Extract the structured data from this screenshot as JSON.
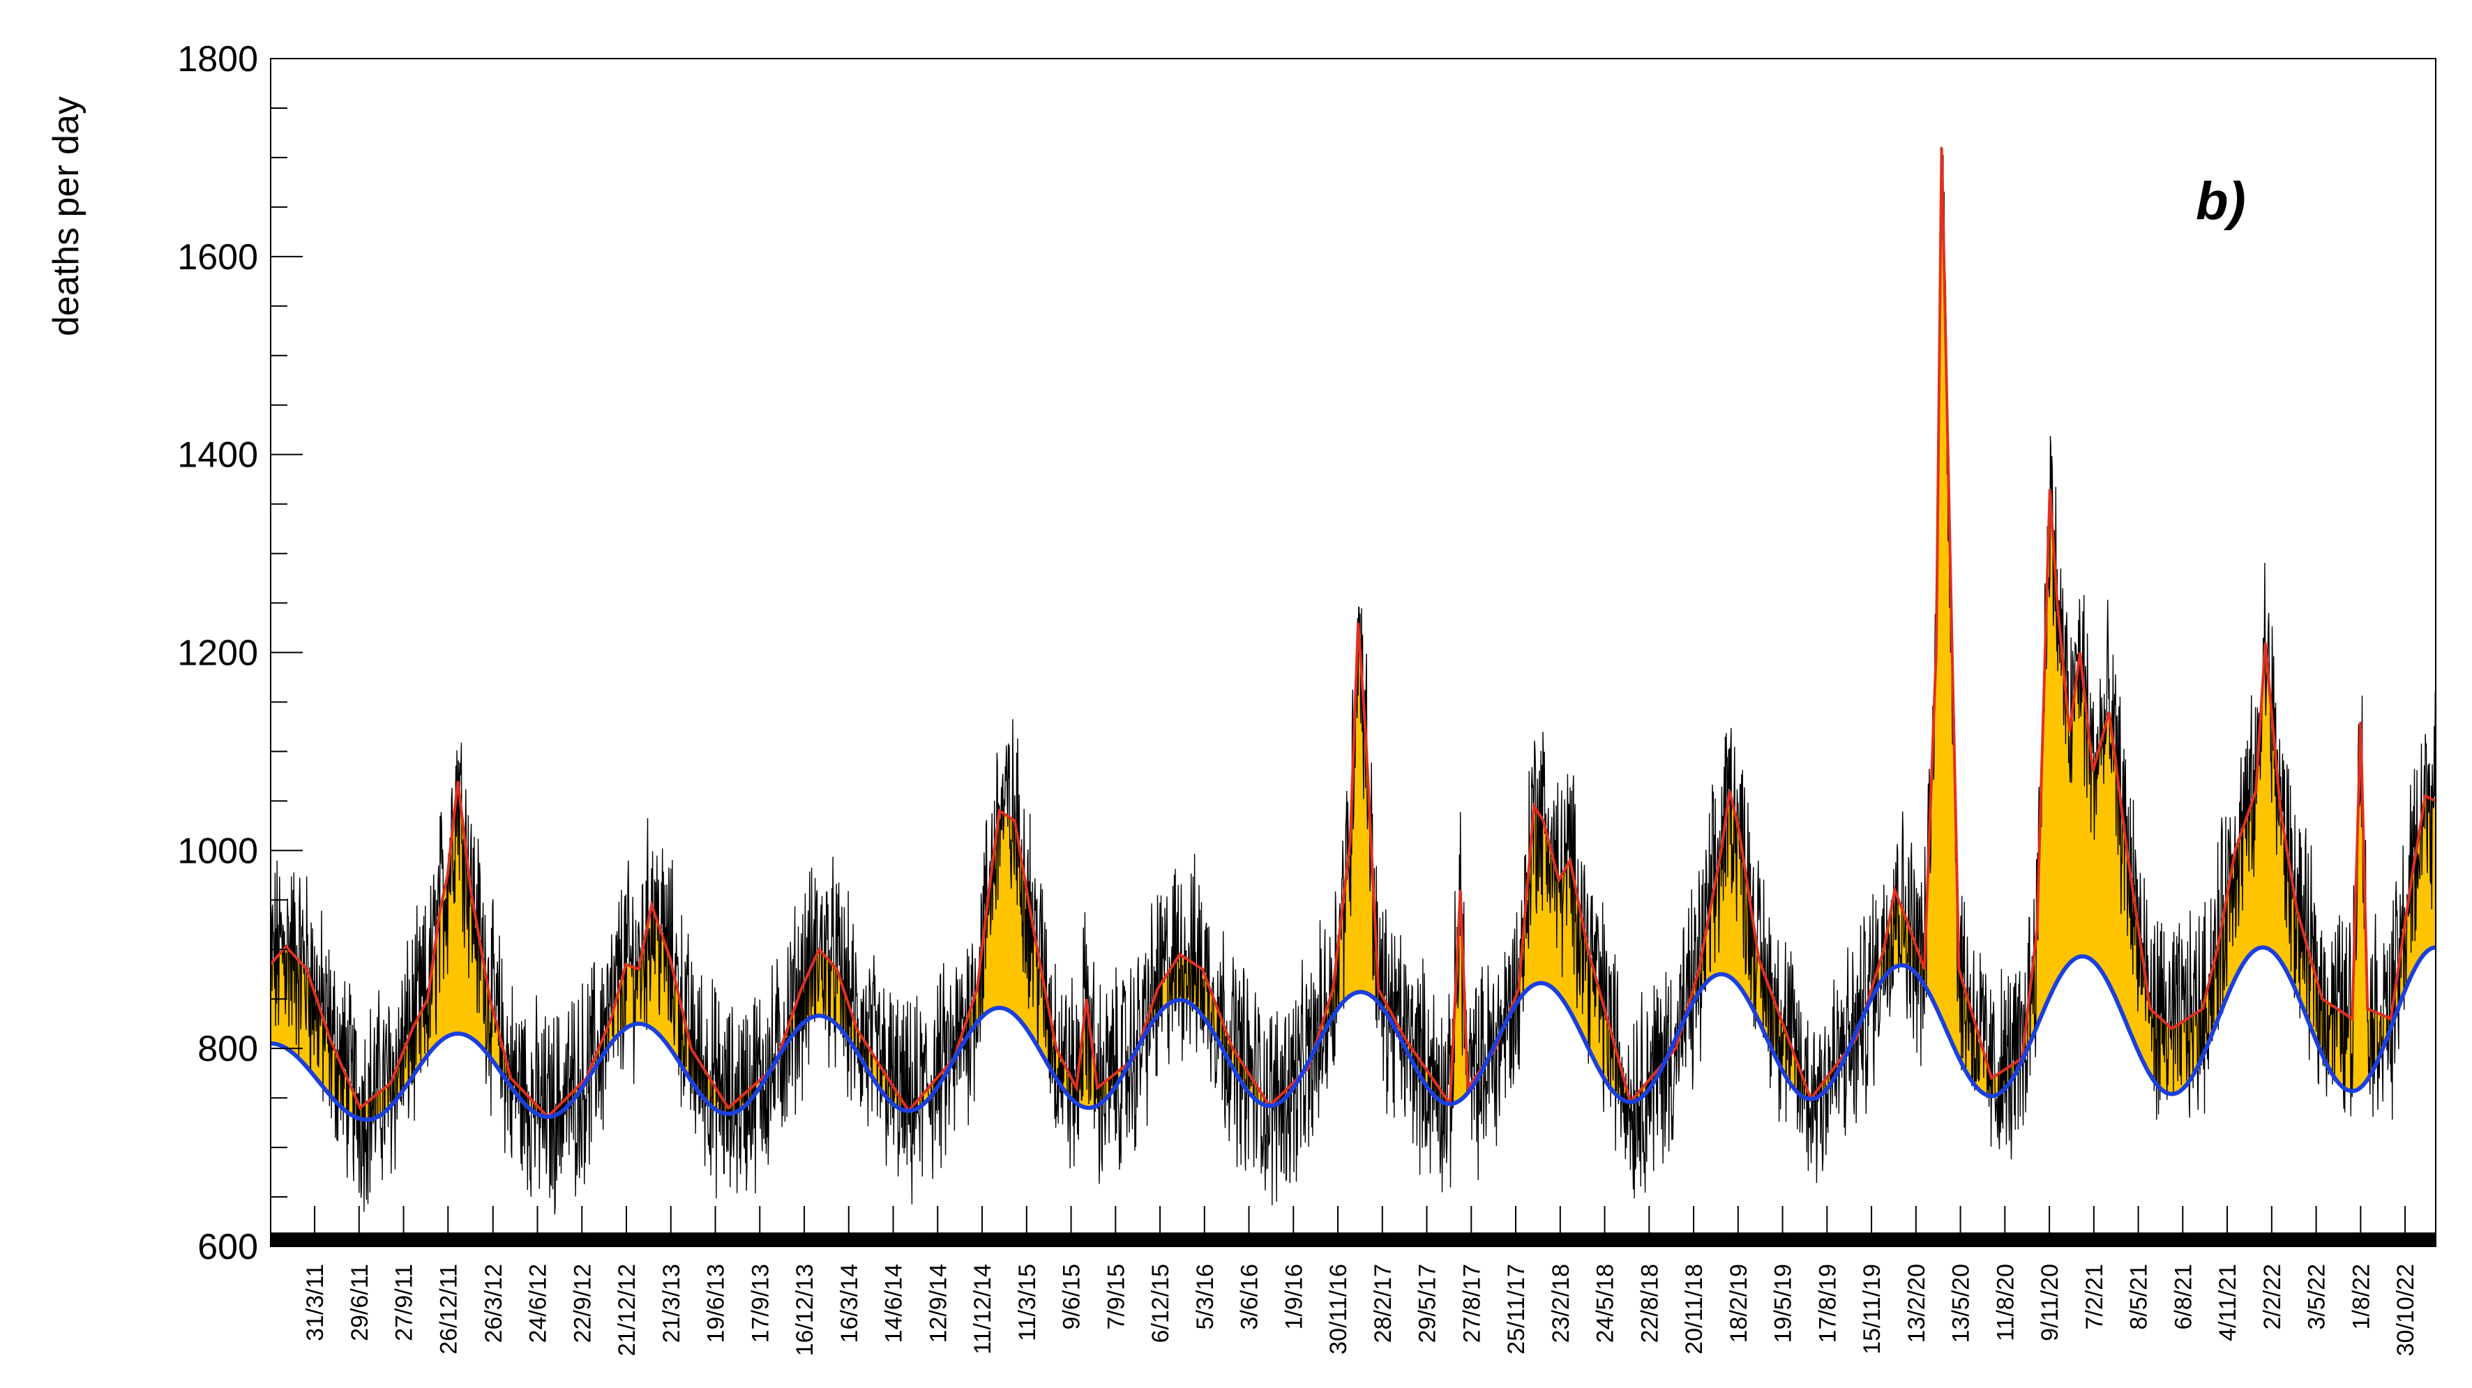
{
  "chart_data": {
    "type": "line",
    "title": "",
    "panel_label": "b)",
    "ylabel": "deaths per day",
    "xlabel": "",
    "ylim": [
      600,
      1800
    ],
    "y_ticks": [
      "600",
      "800",
      "1000",
      "1200",
      "1400",
      "1600",
      "1800"
    ],
    "x_range": [
      "2011-01-01",
      "2022-12-31"
    ],
    "x_tick_labels": [
      "31/3/11",
      "29/6/11",
      "27/9/11",
      "26/12/11",
      "26/3/12",
      "24/6/12",
      "22/9/12",
      "21/12/12",
      "21/3/13",
      "19/6/13",
      "17/9/13",
      "16/12/13",
      "16/3/14",
      "14/6/14",
      "12/9/14",
      "11/12/14",
      "11/3/15",
      "9/6/15",
      "7/9/15",
      "6/12/15",
      "5/3/16",
      "3/6/16",
      "1/9/16",
      "30/11/16",
      "28/2/17",
      "29/5/17",
      "27/8/17",
      "25/11/17",
      "23/2/18",
      "24/5/18",
      "22/8/18",
      "20/11/18",
      "18/2/19",
      "19/5/19",
      "17/8/19",
      "15/11/19",
      "13/2/20",
      "13/5/20",
      "11/8/20",
      "9/11/20",
      "7/2/21",
      "8/5/21",
      "6/8/21",
      "4/11/21",
      "2/2/22",
      "3/5/22",
      "1/8/22",
      "30/10/22"
    ],
    "grid": false,
    "series": [
      {
        "role": "baseline",
        "color": "#1a3fe0",
        "points": [
          [
            "2011-01-01",
            805
          ],
          [
            "2011-07-15",
            728
          ],
          [
            "2012-01-15",
            815
          ],
          [
            "2012-07-15",
            731
          ],
          [
            "2013-01-15",
            825
          ],
          [
            "2013-07-15",
            734
          ],
          [
            "2014-01-15",
            833
          ],
          [
            "2014-07-15",
            737
          ],
          [
            "2015-01-15",
            841
          ],
          [
            "2015-07-15",
            740
          ],
          [
            "2016-01-15",
            849
          ],
          [
            "2016-07-15",
            742
          ],
          [
            "2017-01-15",
            857
          ],
          [
            "2017-07-15",
            744
          ],
          [
            "2018-01-15",
            866
          ],
          [
            "2018-07-15",
            746
          ],
          [
            "2019-01-15",
            875
          ],
          [
            "2019-07-15",
            749
          ],
          [
            "2020-01-15",
            884
          ],
          [
            "2020-07-15",
            752
          ],
          [
            "2021-01-15",
            893
          ],
          [
            "2021-07-15",
            754
          ],
          [
            "2022-01-15",
            902
          ],
          [
            "2022-07-15",
            757
          ],
          [
            "2022-12-31",
            902
          ]
        ]
      },
      {
        "role": "smoothed",
        "color": "#e03020",
        "points": [
          [
            "2011-01-01",
            885
          ],
          [
            "2011-02-01",
            903
          ],
          [
            "2011-03-15",
            880
          ],
          [
            "2011-05-01",
            810
          ],
          [
            "2011-07-01",
            740
          ],
          [
            "2011-09-01",
            765
          ],
          [
            "2011-10-15",
            820
          ],
          [
            "2011-11-15",
            850
          ],
          [
            "2011-12-10",
            940
          ],
          [
            "2011-12-25",
            975
          ],
          [
            "2012-01-15",
            1070
          ],
          [
            "2012-02-10",
            960
          ],
          [
            "2012-03-20",
            850
          ],
          [
            "2012-05-01",
            770
          ],
          [
            "2012-07-15",
            731
          ],
          [
            "2012-10-01",
            770
          ],
          [
            "2012-11-20",
            830
          ],
          [
            "2012-12-20",
            885
          ],
          [
            "2013-01-15",
            880
          ],
          [
            "2013-02-10",
            945
          ],
          [
            "2013-03-20",
            890
          ],
          [
            "2013-05-01",
            800
          ],
          [
            "2013-07-15",
            740
          ],
          [
            "2013-10-15",
            780
          ],
          [
            "2013-12-10",
            860
          ],
          [
            "2014-01-15",
            900
          ],
          [
            "2014-02-20",
            880
          ],
          [
            "2014-04-01",
            820
          ],
          [
            "2014-07-15",
            737
          ],
          [
            "2014-10-15",
            790
          ],
          [
            "2014-12-01",
            860
          ],
          [
            "2014-12-25",
            960
          ],
          [
            "2015-01-15",
            1040
          ],
          [
            "2015-02-15",
            1030
          ],
          [
            "2015-03-25",
            920
          ],
          [
            "2015-05-10",
            800
          ],
          [
            "2015-06-20",
            760
          ],
          [
            "2015-07-10",
            850
          ],
          [
            "2015-08-01",
            760
          ],
          [
            "2015-10-15",
            790
          ],
          [
            "2015-12-01",
            860
          ],
          [
            "2016-01-15",
            895
          ],
          [
            "2016-03-01",
            880
          ],
          [
            "2016-05-01",
            800
          ],
          [
            "2016-07-15",
            742
          ],
          [
            "2016-10-01",
            780
          ],
          [
            "2016-11-20",
            860
          ],
          [
            "2016-12-25",
            1010
          ],
          [
            "2017-01-10",
            1230
          ],
          [
            "2017-01-25",
            1120
          ],
          [
            "2017-02-20",
            860
          ],
          [
            "2017-04-15",
            810
          ],
          [
            "2017-07-15",
            744
          ],
          [
            "2017-08-05",
            960
          ],
          [
            "2017-08-20",
            760
          ],
          [
            "2017-10-15",
            800
          ],
          [
            "2017-12-01",
            860
          ],
          [
            "2018-01-01",
            1045
          ],
          [
            "2018-01-20",
            1030
          ],
          [
            "2018-02-20",
            970
          ],
          [
            "2018-03-15",
            990
          ],
          [
            "2018-04-20",
            900
          ],
          [
            "2018-07-15",
            746
          ],
          [
            "2018-10-15",
            800
          ],
          [
            "2018-12-01",
            880
          ],
          [
            "2019-01-15",
            1000
          ],
          [
            "2019-02-01",
            1060
          ],
          [
            "2019-02-20",
            1020
          ],
          [
            "2019-04-01",
            890
          ],
          [
            "2019-07-15",
            749
          ],
          [
            "2019-10-15",
            810
          ],
          [
            "2019-12-10",
            900
          ],
          [
            "2020-01-01",
            960
          ],
          [
            "2020-01-25",
            930
          ],
          [
            "2020-03-01",
            880
          ],
          [
            "2020-03-25",
            1200
          ],
          [
            "2020-04-05",
            1710
          ],
          [
            "2020-04-20",
            1350
          ],
          [
            "2020-05-10",
            880
          ],
          [
            "2020-07-15",
            770
          ],
          [
            "2020-09-15",
            790
          ],
          [
            "2020-10-15",
            920
          ],
          [
            "2020-11-10",
            1365
          ],
          [
            "2020-11-25",
            1250
          ],
          [
            "2020-12-20",
            1120
          ],
          [
            "2021-01-10",
            1200
          ],
          [
            "2021-02-05",
            1080
          ],
          [
            "2021-03-10",
            1140
          ],
          [
            "2021-04-15",
            1000
          ],
          [
            "2021-06-01",
            840
          ],
          [
            "2021-07-15",
            820
          ],
          [
            "2021-09-15",
            840
          ],
          [
            "2021-10-15",
            900
          ],
          [
            "2021-11-20",
            1000
          ],
          [
            "2022-01-01",
            1060
          ],
          [
            "2022-01-20",
            1210
          ],
          [
            "2022-02-20",
            1040
          ],
          [
            "2022-03-25",
            940
          ],
          [
            "2022-05-15",
            850
          ],
          [
            "2022-07-15",
            830
          ],
          [
            "2022-08-01",
            1130
          ],
          [
            "2022-08-15",
            840
          ],
          [
            "2022-10-01",
            830
          ],
          [
            "2022-11-15",
            980
          ],
          [
            "2022-12-10",
            1055
          ],
          [
            "2022-12-31",
            1050
          ]
        ]
      }
    ],
    "fill_colors": {
      "above_baseline": "#ffc400",
      "below_baseline": "#1aa6e0",
      "daily_data": "#000000"
    }
  }
}
